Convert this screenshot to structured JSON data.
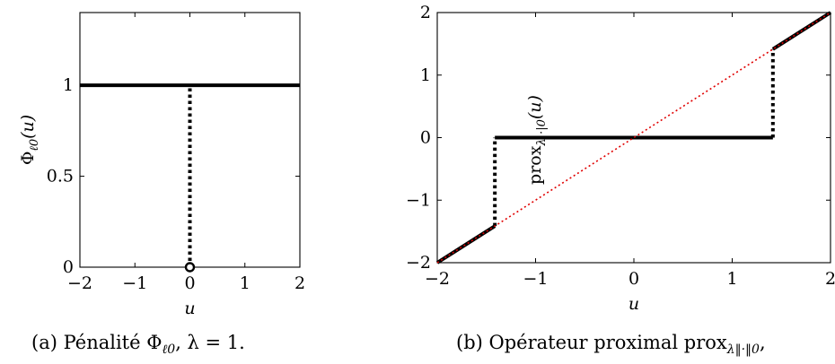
{
  "chart_data": [
    {
      "type": "line",
      "title": "",
      "xlabel": "u",
      "ylabel": "Φℓ0(u)",
      "xlim": [
        -2,
        2
      ],
      "ylim": [
        0,
        1.4
      ],
      "xticks": [
        -2,
        -1,
        0,
        1,
        2
      ],
      "xtick_labels": [
        "−2",
        "−1",
        "0",
        "1",
        "2"
      ],
      "yticks": [
        0,
        0.5,
        1
      ],
      "ytick_labels": [
        "0",
        "0.5",
        "1"
      ],
      "grid": false,
      "series": [
        {
          "style": "solid",
          "color": "#000000",
          "x": [
            -2,
            2
          ],
          "y": [
            1,
            1
          ]
        },
        {
          "style": "dotted",
          "color": "#000000",
          "x": [
            0,
            0
          ],
          "y": [
            0,
            1
          ]
        },
        {
          "style": "marker-open-circle",
          "color": "#000000",
          "x": [
            0
          ],
          "y": [
            0
          ]
        }
      ],
      "caption": "(a) Pénalité Φℓ0, λ = 1."
    },
    {
      "type": "line",
      "title": "",
      "xlabel": "u",
      "ylabel": "prox λ|·|0(u)",
      "xlim": [
        -2,
        2
      ],
      "ylim": [
        -2,
        2
      ],
      "xticks": [
        -2,
        -1,
        0,
        1,
        2
      ],
      "xtick_labels": [
        "−2",
        "−1",
        "0",
        "1",
        "2"
      ],
      "yticks": [
        -2,
        -1,
        0,
        1,
        2
      ],
      "ytick_labels": [
        "−2",
        "−1",
        "0",
        "1",
        "2"
      ],
      "grid": false,
      "series": [
        {
          "style": "solid",
          "color": "#000000",
          "x": [
            -2,
            -1.414
          ],
          "y": [
            -2,
            -1.414
          ]
        },
        {
          "style": "solid",
          "color": "#000000",
          "x": [
            -1.414,
            1.414
          ],
          "y": [
            0,
            0
          ]
        },
        {
          "style": "solid",
          "color": "#000000",
          "x": [
            1.414,
            2
          ],
          "y": [
            1.414,
            2
          ]
        },
        {
          "style": "dotted",
          "color": "#000000",
          "x": [
            -1.414,
            -1.414
          ],
          "y": [
            -1.414,
            0
          ]
        },
        {
          "style": "dotted",
          "color": "#000000",
          "x": [
            1.414,
            1.414
          ],
          "y": [
            0,
            1.414
          ]
        },
        {
          "style": "dotted",
          "color": "#e00000",
          "x": [
            -2,
            2
          ],
          "y": [
            -2,
            2
          ]
        }
      ],
      "caption": "(b) Opérateur proximal proxλ‖·‖0,"
    }
  ],
  "captions": {
    "a_prefix": "(a) Pénalité Φ",
    "a_sub": "ℓ0",
    "a_suffix": ", λ = 1.",
    "b_prefix": "(b) Opérateur proximal prox",
    "b_sub": "λ‖·‖0",
    "b_suffix": ","
  },
  "ylabels": {
    "a_main": "Φ",
    "a_sub": "ℓ0",
    "a_tail": "(u)",
    "b_main": "prox",
    "b_sub": "λ|·|0",
    "b_tail": "(u)"
  }
}
